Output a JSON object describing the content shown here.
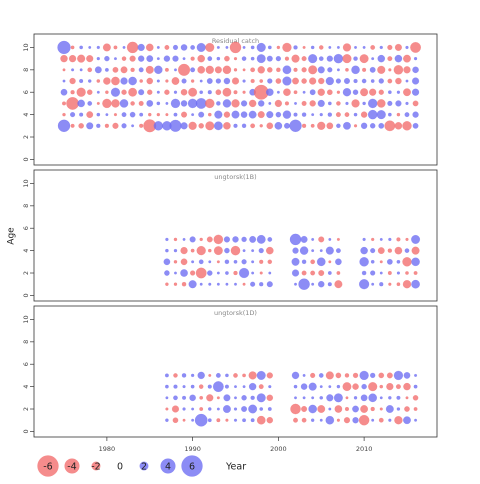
{
  "chart_data": {
    "type": "scatter",
    "subtype": "bubble",
    "ylabel": "Age",
    "xlabel": "Year",
    "x_ticks": [
      1980,
      1990,
      2000,
      2010
    ],
    "y_ticks": [
      0,
      2,
      4,
      6,
      8,
      10
    ],
    "xlim": [
      1971.5,
      2018.5
    ],
    "colors": {
      "positive": "#6B6BF2",
      "negative": "#F26B6B"
    },
    "legend": {
      "values": [
        -6,
        -4,
        -2,
        0,
        2,
        4,
        6
      ],
      "labels": [
        "-6",
        "-4",
        "-2",
        "0",
        "2",
        "4",
        "6"
      ],
      "title": "Year"
    },
    "panels": [
      {
        "title": "Residual catch",
        "ylim": [
          -0.5,
          11.2
        ],
        "years": [
          1975,
          2016
        ],
        "ages": [
          3,
          4,
          5,
          6,
          7,
          8,
          9,
          10
        ],
        "seed": 11,
        "highlights": [
          {
            "x": 1975,
            "y": 10,
            "v": 3.4
          },
          {
            "x": 1975,
            "y": 3,
            "v": 3.1
          },
          {
            "x": 1976,
            "y": 5,
            "v": -3.2
          },
          {
            "x": 1983,
            "y": 10,
            "v": -2.8
          },
          {
            "x": 1985,
            "y": 3,
            "v": -3.3
          },
          {
            "x": 1988,
            "y": 3,
            "v": 3.0
          },
          {
            "x": 1989,
            "y": 8,
            "v": -3.0
          },
          {
            "x": 1991,
            "y": 5,
            "v": 2.6
          },
          {
            "x": 1995,
            "y": 10,
            "v": -2.8
          },
          {
            "x": 1998,
            "y": 6,
            "v": -3.9
          },
          {
            "x": 2002,
            "y": 3,
            "v": 3.1
          },
          {
            "x": 2013,
            "y": 3,
            "v": -2.6
          },
          {
            "x": 2016,
            "y": 10,
            "v": -2.6
          }
        ]
      },
      {
        "title": "ungtorsk(1B)",
        "ylim": [
          -0.5,
          11.2
        ],
        "ages": [
          1,
          2,
          3,
          4,
          5
        ],
        "blocks": [
          [
            1987,
            1999
          ],
          [
            2002,
            2007
          ],
          [
            2010,
            2016
          ]
        ],
        "seed": 23,
        "highlights": [
          {
            "x": 1991,
            "y": 2,
            "v": -2.6
          },
          {
            "x": 1996,
            "y": 2,
            "v": 2.4
          },
          {
            "x": 2002,
            "y": 5,
            "v": 2.8
          },
          {
            "x": 2003,
            "y": 1,
            "v": 2.8
          },
          {
            "x": 2010,
            "y": 1,
            "v": 2.4
          }
        ]
      },
      {
        "title": "ungtorsk(1D)",
        "ylim": [
          -0.5,
          11.2
        ],
        "ages": [
          1,
          2,
          3,
          4,
          5
        ],
        "blocks": [
          [
            1987,
            1999
          ],
          [
            2002,
            2016
          ]
        ],
        "seed": 37,
        "highlights": [
          {
            "x": 1991,
            "y": 1,
            "v": 3.2
          },
          {
            "x": 1993,
            "y": 4,
            "v": 2.6
          },
          {
            "x": 2002,
            "y": 2,
            "v": -2.5
          },
          {
            "x": 2010,
            "y": 1,
            "v": -2.5
          }
        ]
      }
    ]
  }
}
